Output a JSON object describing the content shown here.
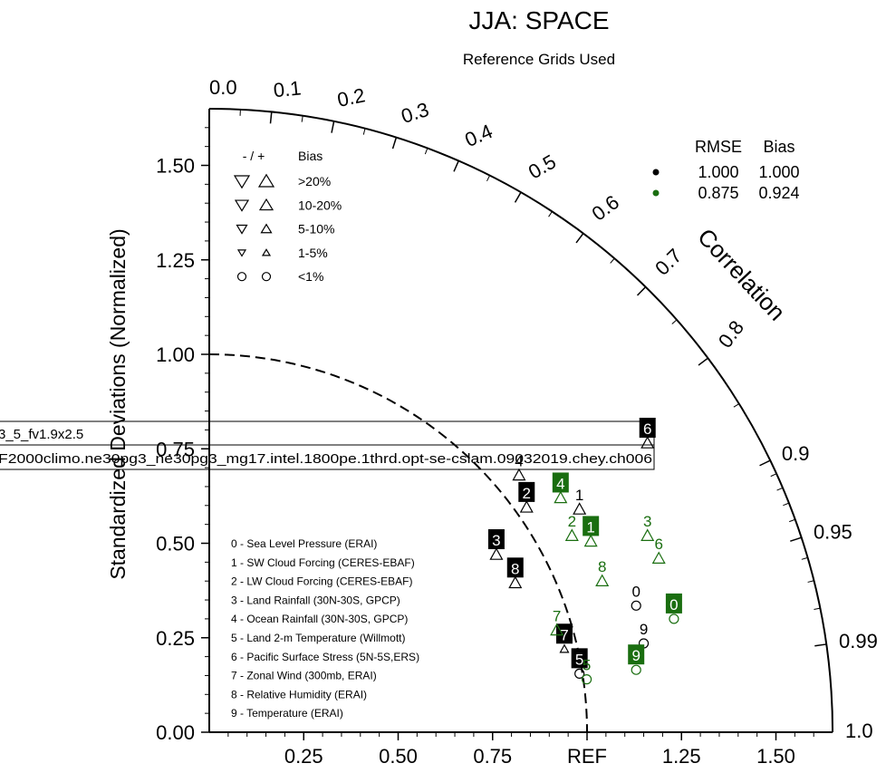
{
  "chart_data": {
    "type": "scatter",
    "title": "JJA: SPACE",
    "subtitle": "Reference Grids Used",
    "ylabel": "Standardized Deviations (Normalized)",
    "correlation_label": "Correlation",
    "ref_label": "REF",
    "ylim": [
      0,
      1.65
    ],
    "y_ticks": [
      "0.00",
      "0.25",
      "0.50",
      "0.75",
      "1.00",
      "1.25",
      "1.50"
    ],
    "x_ticks": [
      "0.25",
      "0.50",
      "0.75",
      "1.25",
      "1.50"
    ],
    "corr_ticks_inner": [
      "0.0",
      "0.1",
      "0.2",
      "0.3",
      "0.4",
      "0.5",
      "0.6",
      "0.7",
      "0.8"
    ],
    "corr_ticks_outer": [
      "0.9",
      "0.95",
      "0.99",
      "1.0"
    ],
    "bias_legend": {
      "header": [
        "- / +",
        "Bias"
      ],
      "rows": [
        ">20%",
        "10-20%",
        "5-10%",
        "1-5%",
        "<1%"
      ]
    },
    "stats_legend": {
      "header": [
        "RMSE",
        "Bias"
      ],
      "rows": [
        {
          "color": "#000000",
          "rmse": "1.000",
          "bias": "1.000"
        },
        {
          "color": "#1a6e10",
          "rmse": "0.875",
          "bias": "0.924"
        }
      ]
    },
    "variables": [
      "0 - Sea Level Pressure (ERAI)",
      "1 - SW Cloud Forcing (CERES-EBAF)",
      "2 - LW Cloud Forcing (CERES-EBAF)",
      "3 - Land Rainfall (30N-30S, GPCP)",
      "4 - Ocean Rainfall (30N-30S, GPCP)",
      "5 - Land 2-m Temperature (Willmott)",
      "6 - Pacific Surface Stress (5N-5S,ERS)",
      "7 - Zonal Wind (300mb, ERAI)",
      "8 - Relative Humidity (ERAI)",
      "9 - Temperature (ERAI)"
    ],
    "cases": [
      "3_5_fv1.9x2.5",
      "F2000climo.ne30pg3_ne30pg3_mg17.intel.1800pe.1thrd.opt-se-cslam.09032019.chey.ch006"
    ],
    "series": [
      {
        "color": "#000000",
        "points": [
          {
            "id": "0",
            "x": 1.13,
            "y": 0.335,
            "sym": "circle",
            "boxed": false
          },
          {
            "id": "1",
            "x": 0.98,
            "y": 0.59,
            "sym": "up",
            "boxed": false
          },
          {
            "id": "2",
            "x": 0.84,
            "y": 0.595,
            "sym": "up",
            "boxed": true
          },
          {
            "id": "3",
            "x": 0.76,
            "y": 0.47,
            "sym": "up",
            "boxed": true
          },
          {
            "id": "4",
            "x": 0.82,
            "y": 0.68,
            "sym": "up",
            "boxed": false
          },
          {
            "id": "5",
            "x": 0.98,
            "y": 0.155,
            "sym": "circle",
            "boxed": true
          },
          {
            "id": "6",
            "x": 1.16,
            "y": 0.765,
            "sym": "up",
            "boxed": true
          },
          {
            "id": "7",
            "x": 0.94,
            "y": 0.22,
            "sym": "up-small",
            "boxed": true
          },
          {
            "id": "8",
            "x": 0.81,
            "y": 0.395,
            "sym": "up",
            "boxed": true
          },
          {
            "id": "9",
            "x": 1.15,
            "y": 0.235,
            "sym": "circle",
            "boxed": false
          }
        ]
      },
      {
        "color": "#1a6e10",
        "points": [
          {
            "id": "0",
            "x": 1.23,
            "y": 0.3,
            "sym": "circle",
            "boxed": true
          },
          {
            "id": "1",
            "x": 1.01,
            "y": 0.505,
            "sym": "up",
            "boxed": true
          },
          {
            "id": "2",
            "x": 0.96,
            "y": 0.52,
            "sym": "up",
            "boxed": false
          },
          {
            "id": "3",
            "x": 1.16,
            "y": 0.52,
            "sym": "up",
            "boxed": false
          },
          {
            "id": "4",
            "x": 0.93,
            "y": 0.62,
            "sym": "up",
            "boxed": true
          },
          {
            "id": "5",
            "x": 0.999,
            "y": 0.14,
            "sym": "circle",
            "boxed": false
          },
          {
            "id": "6",
            "x": 1.19,
            "y": 0.46,
            "sym": "up",
            "boxed": false
          },
          {
            "id": "7",
            "x": 0.92,
            "y": 0.27,
            "sym": "up",
            "boxed": false
          },
          {
            "id": "8",
            "x": 1.04,
            "y": 0.4,
            "sym": "up",
            "boxed": false
          },
          {
            "id": "9",
            "x": 1.13,
            "y": 0.165,
            "sym": "circle",
            "boxed": true
          }
        ]
      }
    ]
  }
}
